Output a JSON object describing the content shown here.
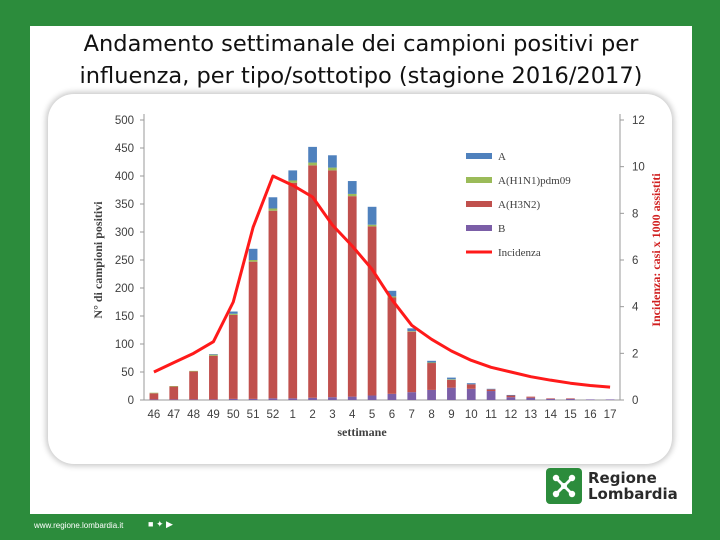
{
  "slide": {
    "title_line1": "Andamento settimanale dei campioni positivi per",
    "title_line2": "influenza, per tipo/sottotipo (stagione 2016/2017)",
    "footer_url": "www.regione.lombardia.it",
    "logo_line1": "Regione",
    "logo_line2": "Lombardia",
    "background_color": "#2c8c3c"
  },
  "chart_data": {
    "type": "bar",
    "stacked": true,
    "xlabel": "settimane",
    "ylabel": "N° di campioni positivi",
    "y2label": "Incidenza: casi x 1000 assistiti",
    "ylim": [
      0,
      500
    ],
    "y2lim": [
      0,
      12
    ],
    "yticks": [
      0,
      50,
      100,
      150,
      200,
      250,
      300,
      350,
      400,
      450,
      500
    ],
    "y2ticks": [
      0,
      2,
      4,
      6,
      8,
      10,
      12
    ],
    "categories": [
      "46",
      "47",
      "48",
      "49",
      "50",
      "51",
      "52",
      "1",
      "2",
      "3",
      "4",
      "5",
      "6",
      "7",
      "8",
      "9",
      "10",
      "11",
      "12",
      "13",
      "14",
      "15",
      "16",
      "17"
    ],
    "legend_position": "top-right",
    "series": [
      {
        "name": "B",
        "color": "#7b5ea7",
        "values": [
          1,
          1,
          1,
          1,
          2,
          2,
          3,
          3,
          4,
          5,
          6,
          8,
          11,
          14,
          18,
          22,
          20,
          16,
          5,
          4,
          2,
          2,
          1,
          1
        ]
      },
      {
        "name": "A(H3N2)",
        "color": "#c0504d",
        "values": [
          11,
          23,
          50,
          78,
          150,
          245,
          335,
          385,
          415,
          405,
          358,
          302,
          172,
          108,
          48,
          14,
          8,
          3,
          3,
          2,
          1,
          1,
          0,
          0
        ]
      },
      {
        "name": "A(H1N1)pdm09",
        "color": "#9bbb59",
        "values": [
          1,
          1,
          1,
          2,
          2,
          3,
          4,
          4,
          5,
          5,
          4,
          3,
          2,
          1,
          1,
          1,
          0,
          0,
          0,
          0,
          0,
          0,
          0,
          0
        ]
      },
      {
        "name": "A",
        "color": "#4f81bd",
        "values": [
          0,
          0,
          0,
          1,
          4,
          20,
          20,
          18,
          28,
          22,
          23,
          32,
          10,
          5,
          3,
          3,
          2,
          1,
          1,
          0,
          0,
          0,
          0,
          0
        ]
      }
    ],
    "line": {
      "name": "Incidenza",
      "color": "#ff1a1a",
      "axis": "right",
      "values": [
        1.2,
        1.6,
        2.0,
        2.5,
        4.2,
        7.4,
        9.6,
        9.2,
        8.7,
        7.5,
        6.6,
        5.6,
        4.3,
        3.2,
        2.6,
        2.1,
        1.7,
        1.4,
        1.2,
        1.0,
        0.85,
        0.72,
        0.62,
        0.55
      ]
    }
  }
}
